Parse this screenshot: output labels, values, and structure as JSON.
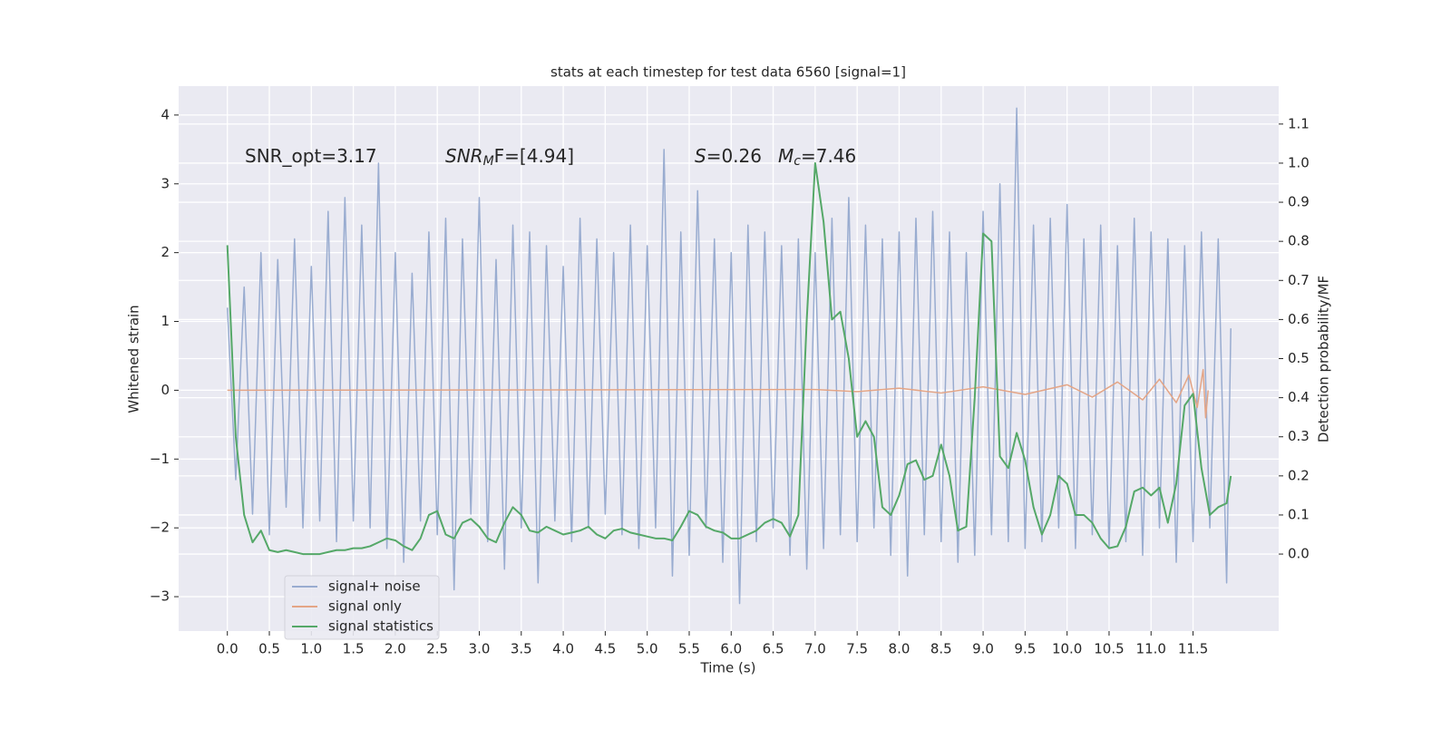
{
  "chart_data": {
    "type": "line",
    "title": "stats at each timestep for test data 6560 [signal=1]",
    "xlabel": "Time (s)",
    "ylabel": "Whitened strain",
    "y2label": "Detection probability/MF",
    "annotations": [
      {
        "text": "SNR_opt=3.17"
      },
      {
        "text": "SNR",
        "sub": "M",
        "after": "F=[4.94]"
      },
      {
        "text": "S",
        "after": "=0.26"
      },
      {
        "text": "M",
        "sub": "c",
        "after": "=7.46"
      }
    ],
    "x": [
      0.0,
      0.1,
      0.2,
      0.3,
      0.4,
      0.5,
      0.6,
      0.7,
      0.8,
      0.9,
      1.0,
      1.1,
      1.2,
      1.3,
      1.4,
      1.5,
      1.6,
      1.7,
      1.8,
      1.9,
      2.0,
      2.1,
      2.2,
      2.3,
      2.4,
      2.5,
      2.6,
      2.7,
      2.8,
      2.9,
      3.0,
      3.1,
      3.2,
      3.3,
      3.4,
      3.5,
      3.6,
      3.7,
      3.8,
      3.9,
      4.0,
      4.1,
      4.2,
      4.3,
      4.4,
      4.5,
      4.6,
      4.7,
      4.8,
      4.9,
      5.0,
      5.1,
      5.2,
      5.3,
      5.4,
      5.5,
      5.6,
      5.7,
      5.8,
      5.9,
      6.0,
      6.1,
      6.2,
      6.3,
      6.4,
      6.5,
      6.6,
      6.7,
      6.8,
      6.9,
      7.0,
      7.1,
      7.2,
      7.3,
      7.4,
      7.5,
      7.6,
      7.7,
      7.8,
      7.9,
      8.0,
      8.1,
      8.2,
      8.3,
      8.4,
      8.5,
      8.6,
      8.7,
      8.8,
      8.9,
      9.0,
      9.1,
      9.2,
      9.3,
      9.4,
      9.5,
      9.6,
      9.7,
      9.8,
      9.9,
      10.0,
      10.1,
      10.2,
      10.3,
      10.4,
      10.5,
      10.6,
      10.7,
      10.8,
      10.9,
      11.0,
      11.1,
      11.2,
      11.3,
      11.4,
      11.5,
      11.6,
      11.7,
      11.8,
      11.9,
      11.95
    ],
    "series": [
      {
        "name": "signal+ noise",
        "color": "#99acd0",
        "values": [
          1.2,
          -1.3,
          1.5,
          -1.8,
          2.0,
          -2.1,
          1.9,
          -1.7,
          2.2,
          -2.0,
          1.8,
          -1.9,
          2.6,
          -2.2,
          2.8,
          -1.9,
          2.4,
          -2.0,
          3.3,
          -2.3,
          2.0,
          -2.5,
          1.7,
          -1.9,
          2.3,
          -2.1,
          2.5,
          -2.9,
          2.2,
          -1.8,
          2.8,
          -2.2,
          1.9,
          -2.6,
          2.4,
          -2.0,
          2.3,
          -2.8,
          2.1,
          -1.9,
          1.8,
          -2.2,
          2.5,
          -2.0,
          2.2,
          -1.8,
          2.0,
          -2.1,
          2.4,
          -2.3,
          2.1,
          -2.0,
          3.5,
          -2.7,
          2.3,
          -2.4,
          2.9,
          -2.0,
          2.2,
          -2.5,
          2.0,
          -3.1,
          2.4,
          -2.2,
          2.3,
          -2.0,
          2.1,
          -2.4,
          2.2,
          -2.6,
          2.0,
          -2.3,
          2.5,
          -2.1,
          2.8,
          -2.2,
          2.4,
          -2.0,
          2.2,
          -2.4,
          2.3,
          -2.7,
          2.5,
          -2.1,
          2.6,
          -2.2,
          2.3,
          -2.5,
          2.0,
          -2.4,
          2.6,
          -2.1,
          3.0,
          -2.2,
          4.1,
          -2.3,
          2.4,
          -2.2,
          2.5,
          -2.0,
          2.7,
          -2.3,
          2.2,
          -2.1,
          2.4,
          -2.3,
          2.1,
          -2.2,
          2.5,
          -2.4,
          2.3,
          -2.0,
          2.2,
          -2.5,
          2.1,
          -2.2,
          2.3,
          -2.0,
          2.2,
          -2.8,
          0.9
        ]
      },
      {
        "name": "signal only",
        "color": "#e4a586",
        "x": [
          0.0,
          7.0,
          7.5,
          8.0,
          8.5,
          9.0,
          9.5,
          10.0,
          10.3,
          10.6,
          10.9,
          11.1,
          11.3,
          11.45,
          11.55,
          11.62,
          11.65,
          11.68
        ],
        "values": [
          0,
          0.01,
          -0.02,
          0.03,
          -0.04,
          0.05,
          -0.06,
          0.08,
          -0.1,
          0.12,
          -0.14,
          0.16,
          -0.18,
          0.22,
          -0.25,
          0.3,
          -0.4,
          0.0
        ]
      },
      {
        "name": "signal statistics",
        "color": "#55a868",
        "axis": "y2",
        "values": [
          0.79,
          0.3,
          0.1,
          0.03,
          0.06,
          0.01,
          0.005,
          0.01,
          0.005,
          0.0,
          0.0,
          0.0,
          0.005,
          0.01,
          0.01,
          0.015,
          0.015,
          0.02,
          0.03,
          0.04,
          0.035,
          0.02,
          0.01,
          0.04,
          0.1,
          0.11,
          0.05,
          0.04,
          0.08,
          0.09,
          0.07,
          0.04,
          0.03,
          0.08,
          0.12,
          0.1,
          0.06,
          0.055,
          0.07,
          0.06,
          0.05,
          0.055,
          0.06,
          0.07,
          0.05,
          0.04,
          0.06,
          0.065,
          0.055,
          0.05,
          0.045,
          0.04,
          0.04,
          0.035,
          0.07,
          0.11,
          0.1,
          0.07,
          0.06,
          0.055,
          0.04,
          0.04,
          0.05,
          0.06,
          0.08,
          0.09,
          0.08,
          0.045,
          0.1,
          0.6,
          1.0,
          0.85,
          0.6,
          0.62,
          0.5,
          0.3,
          0.34,
          0.3,
          0.12,
          0.1,
          0.15,
          0.23,
          0.24,
          0.19,
          0.2,
          0.28,
          0.2,
          0.06,
          0.07,
          0.4,
          0.82,
          0.8,
          0.25,
          0.22,
          0.31,
          0.24,
          0.12,
          0.05,
          0.1,
          0.2,
          0.18,
          0.1,
          0.1,
          0.08,
          0.04,
          0.015,
          0.02,
          0.07,
          0.16,
          0.17,
          0.15,
          0.17,
          0.08,
          0.18,
          0.38,
          0.41,
          0.22,
          0.1,
          0.12,
          0.13,
          0.2
        ]
      }
    ],
    "xlim": [
      -0.58,
      12.52
    ],
    "ylim": [
      -3.5,
      4.42
    ],
    "y2lim": [
      -0.197,
      1.197
    ],
    "xticks": [
      {
        "value": 0,
        "label": "0.0"
      },
      {
        "value": 0.5,
        "label": "0.5"
      },
      {
        "value": 1,
        "label": "1.0"
      },
      {
        "value": 1.5,
        "label": "1.5"
      },
      {
        "value": 2,
        "label": "2.0"
      },
      {
        "value": 2.5,
        "label": "2.5"
      },
      {
        "value": 3,
        "label": "3.0"
      },
      {
        "value": 3.5,
        "label": "3.5"
      },
      {
        "value": 4,
        "label": "4.0"
      },
      {
        "value": 4.5,
        "label": "4.5"
      },
      {
        "value": 5,
        "label": "5.0"
      },
      {
        "value": 5.5,
        "label": "5.5"
      },
      {
        "value": 6,
        "label": "6.0"
      },
      {
        "value": 6.5,
        "label": "6.5"
      },
      {
        "value": 7,
        "label": "7.0"
      },
      {
        "value": 7.5,
        "label": "7.5"
      },
      {
        "value": 8,
        "label": "8.0"
      },
      {
        "value": 8.5,
        "label": "8.5"
      },
      {
        "value": 9,
        "label": "9.0"
      },
      {
        "value": 9.5,
        "label": "9.5"
      },
      {
        "value": 10,
        "label": "10.0"
      },
      {
        "value": 10.5,
        "label": "10.5"
      },
      {
        "value": 11,
        "label": "11.0"
      },
      {
        "value": 11.5,
        "label": "11.5"
      }
    ],
    "yticks": [
      {
        "value": -3,
        "label": "−3"
      },
      {
        "value": -2,
        "label": "−2"
      },
      {
        "value": -1,
        "label": "−1"
      },
      0,
      1,
      2,
      3,
      4
    ],
    "y2ticks": [
      {
        "value": 0,
        "label": "0.0"
      },
      {
        "value": 0.1,
        "label": "0.1"
      },
      {
        "value": 0.2,
        "label": "0.2"
      },
      {
        "value": 0.3,
        "label": "0.3"
      },
      {
        "value": 0.4,
        "label": "0.4"
      },
      {
        "value": 0.5,
        "label": "0.5"
      },
      {
        "value": 0.6,
        "label": "0.6"
      },
      {
        "value": 0.7,
        "label": "0.7"
      },
      {
        "value": 0.8,
        "label": "0.8"
      },
      {
        "value": 0.9,
        "label": "0.9"
      },
      {
        "value": 1,
        "label": "1.0"
      },
      {
        "value": 1.1,
        "label": "1.1"
      }
    ],
    "grid": true,
    "legend": "lower left",
    "background": "#eaeaf2"
  }
}
